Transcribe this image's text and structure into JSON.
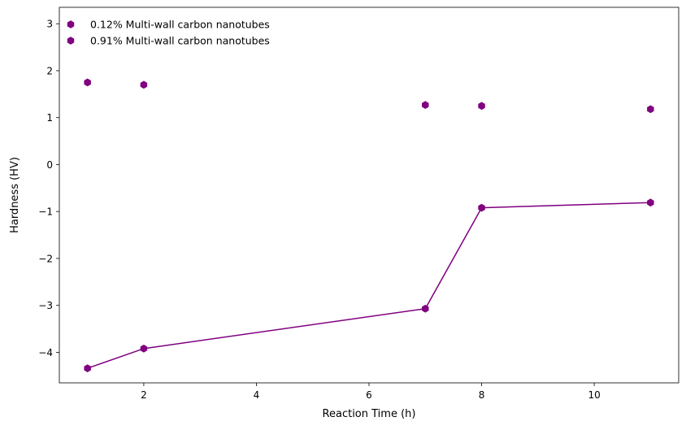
{
  "chart_data": {
    "type": "scatter",
    "title": "",
    "xlabel": "Reaction Time (h)",
    "ylabel": "Hardness (HV)",
    "xlim": [
      0.5,
      11.5
    ],
    "ylim": [
      -4.65,
      3.35
    ],
    "x_ticks": [
      2,
      4,
      6,
      8,
      10
    ],
    "y_ticks": [
      -4,
      -3,
      -2,
      -1,
      0,
      1,
      2,
      3
    ],
    "grid": false,
    "legend_position": "top-left",
    "series": [
      {
        "name": "0.12% Multi-wall carbon nanotubes",
        "color": "#800080",
        "marker": "hexagon",
        "connect": false,
        "x": [
          1,
          2,
          7,
          8,
          11
        ],
        "y": [
          1.75,
          1.7,
          1.27,
          1.25,
          1.18
        ]
      },
      {
        "name": "0.91% Multi-wall carbon nanotubes",
        "color": "#800080",
        "marker": "hexagon",
        "connect": true,
        "x": [
          1,
          2,
          7,
          8,
          11
        ],
        "y": [
          -4.34,
          -3.92,
          -3.07,
          -0.92,
          -0.81
        ]
      }
    ]
  }
}
